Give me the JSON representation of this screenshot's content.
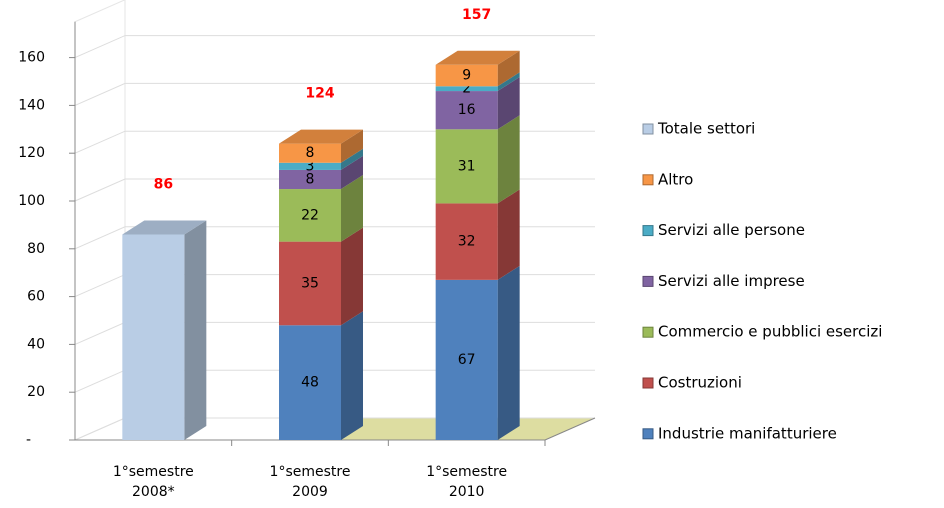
{
  "chart_data": {
    "type": "bar3d_stacked",
    "categories": [
      "1°semestre\n2008*",
      "1°semestre\n2009",
      "1°semestre\n2010"
    ],
    "series": [
      {
        "name": "Industrie manifatturiere",
        "color": "#4f81bd",
        "values": [
          null,
          48,
          67
        ]
      },
      {
        "name": "Costruzioni",
        "color": "#c0504d",
        "values": [
          null,
          35,
          32
        ]
      },
      {
        "name": "Commercio e pubblici esercizi",
        "color": "#9bbb59",
        "values": [
          null,
          22,
          31
        ]
      },
      {
        "name": "Servizi alle imprese",
        "color": "#8064a2",
        "values": [
          null,
          8,
          16
        ]
      },
      {
        "name": "Servizi alle persone",
        "color": "#4bacc6",
        "values": [
          null,
          3,
          2
        ]
      },
      {
        "name": "Altro",
        "color": "#f79646",
        "values": [
          null,
          8,
          9
        ]
      },
      {
        "name": "Totale settori",
        "color": "#b9cde5",
        "values": [
          86,
          null,
          null
        ]
      }
    ],
    "totals": [
      86,
      124,
      157
    ],
    "totals_color": "#ff0000",
    "ylim": [
      0,
      175
    ],
    "yticks": [
      {
        "value": 0,
        "label": "-"
      },
      20,
      40,
      60,
      80,
      100,
      120,
      140,
      160
    ],
    "grid": true,
    "legend": "right"
  }
}
